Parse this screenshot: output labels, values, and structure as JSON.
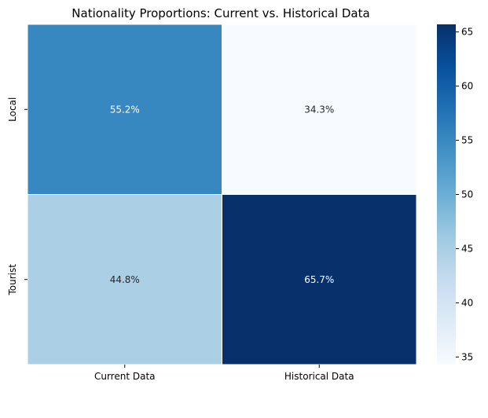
{
  "chart_data": {
    "type": "heatmap",
    "title": "Nationality Proportions: Current vs. Historical Data",
    "xlabel": "",
    "ylabel": "",
    "x_categories": [
      "Current Data",
      "Historical Data"
    ],
    "y_categories": [
      "Local",
      "Tourist"
    ],
    "values": [
      [
        55.2,
        34.3
      ],
      [
        44.8,
        65.7
      ]
    ],
    "annotations": [
      [
        "55.2%",
        "34.3%"
      ],
      [
        "44.8%",
        "65.7%"
      ]
    ],
    "colorbar": {
      "colormap": "Blues",
      "range": [
        34.3,
        65.7
      ],
      "ticks": [
        35,
        40,
        45,
        50,
        55,
        60,
        65
      ]
    },
    "grid": false
  }
}
